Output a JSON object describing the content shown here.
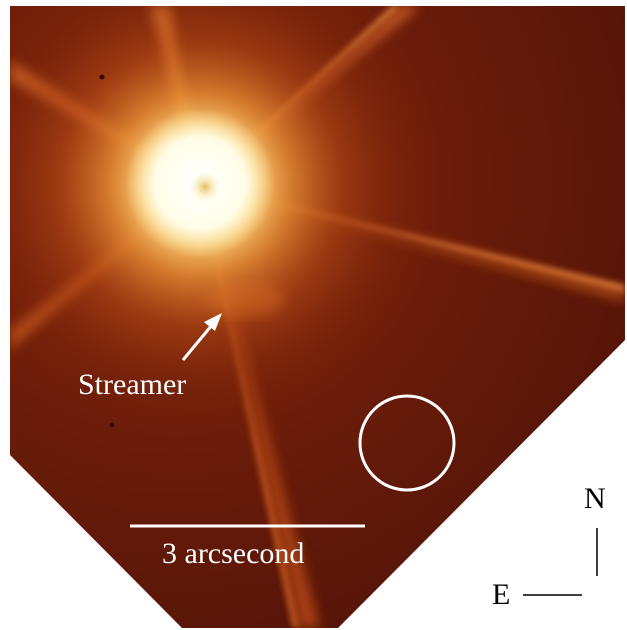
{
  "image": {
    "subject": "stellar-image",
    "colors": {
      "background": "#ffffff",
      "field": "#6e1c0a",
      "glow": "#f28a2a",
      "core": "#fffbe6",
      "annotation": "#ffffff",
      "compass": "#000000"
    }
  },
  "annotations": {
    "streamer_label": "Streamer",
    "scale_label": "3 arcsecond"
  },
  "compass": {
    "north_label": "N",
    "east_label": "E"
  }
}
